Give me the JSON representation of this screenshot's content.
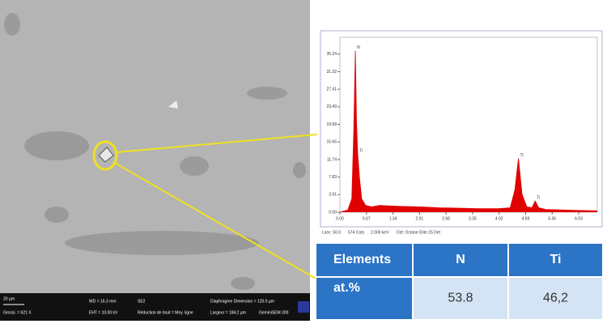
{
  "sem": {
    "info": [
      "20 µm",
      "Grossi. = 621 X",
      "WD = 16.3 mm",
      "EHT = 10.00 kV",
      "SE2",
      "Réduction de bruit = Moy. ligne",
      "Diaphragme Dimension = 120.0 µm",
      "Largeur = 184.2 µm",
      "GeminiSEM 300"
    ]
  },
  "chart_data": {
    "type": "line",
    "color": "#e00000",
    "x": [
      0,
      0.2,
      0.3,
      0.35,
      0.39,
      0.42,
      0.45,
      0.49,
      0.55,
      0.65,
      0.8,
      1.0,
      1.5,
      2.0,
      2.5,
      3.0,
      3.5,
      4.0,
      4.3,
      4.42,
      4.51,
      4.6,
      4.72,
      4.85,
      4.93,
      5.02,
      5.2,
      6.0,
      6.5
    ],
    "values": [
      0,
      0.5,
      3,
      18,
      36,
      20,
      13,
      8,
      3,
      1.5,
      1.2,
      1.5,
      1.3,
      1.2,
      1.0,
      0.9,
      0.8,
      0.8,
      1.0,
      5,
      12,
      4,
      1.2,
      1.0,
      2.5,
      1.0,
      0.6,
      0.4,
      0.3
    ],
    "xlim": [
      0,
      6.5
    ],
    "xticks": [
      {
        "value": 0,
        "label": "0.00"
      },
      0.67,
      1.34,
      2.01,
      2.68,
      3.35,
      4.02,
      4.69,
      5.36,
      6.03
    ],
    "ylim": [
      0,
      39
    ],
    "yticks": [
      {
        "value": 0,
        "label": "0.00"
      },
      3.91,
      7.83,
      11.74,
      15.66,
      19.58,
      23.49,
      27.41,
      31.32,
      35.24
    ],
    "annotations": [
      "N",
      "Ti",
      "Ti",
      "Ti"
    ],
    "footer": [
      "Lsec: 50.0",
      "574 Cnts",
      "2.000 keV",
      "Det: Octane Elite 25 Det"
    ]
  },
  "table": {
    "header": [
      "Elements",
      "N",
      "Ti"
    ],
    "rows": [
      [
        "at.%",
        "53.8",
        "46,2"
      ]
    ]
  }
}
